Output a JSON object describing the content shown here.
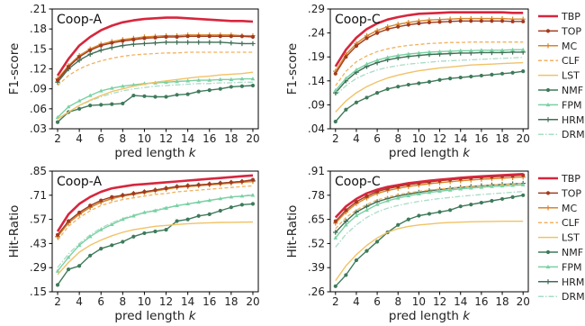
{
  "chart_data": [
    {
      "type": "line",
      "title": "Coop-A",
      "xlabel": "pred length k",
      "ylabel": "F1-score",
      "x": [
        2,
        3,
        4,
        5,
        6,
        7,
        8,
        9,
        10,
        11,
        12,
        13,
        14,
        15,
        16,
        17,
        18,
        19,
        20
      ],
      "xticks": [
        2,
        4,
        6,
        8,
        10,
        12,
        14,
        16,
        18,
        20
      ],
      "ylim": [
        0.03,
        0.21
      ],
      "yticks": [
        ".03",
        ".06",
        ".09",
        ".12",
        ".15",
        ".18",
        ".21"
      ],
      "series": [
        {
          "name": "TBP",
          "values": [
            0.11,
            0.135,
            0.155,
            0.168,
            0.178,
            0.185,
            0.19,
            0.193,
            0.195,
            0.196,
            0.197,
            0.197,
            0.196,
            0.195,
            0.194,
            0.193,
            0.192,
            0.192,
            0.191
          ]
        },
        {
          "name": "TOP",
          "values": [
            0.103,
            0.123,
            0.138,
            0.148,
            0.155,
            0.159,
            0.162,
            0.164,
            0.166,
            0.167,
            0.168,
            0.168,
            0.169,
            0.169,
            0.169,
            0.169,
            0.169,
            0.169,
            0.168
          ]
        },
        {
          "name": "MC",
          "values": [
            0.105,
            0.125,
            0.14,
            0.15,
            0.157,
            0.161,
            0.164,
            0.166,
            0.168,
            0.169,
            0.17,
            0.17,
            0.171,
            0.171,
            0.171,
            0.171,
            0.171,
            0.17,
            0.17
          ]
        },
        {
          "name": "CLF",
          "values": [
            0.095,
            0.11,
            0.12,
            0.127,
            0.132,
            0.136,
            0.139,
            0.141,
            0.142,
            0.143,
            0.144,
            0.144,
            0.145,
            0.145,
            0.145,
            0.145,
            0.145,
            0.145,
            0.145
          ]
        },
        {
          "name": "LST",
          "values": [
            0.045,
            0.055,
            0.065,
            0.073,
            0.08,
            0.086,
            0.09,
            0.094,
            0.097,
            0.1,
            0.102,
            0.104,
            0.106,
            0.108,
            0.109,
            0.111,
            0.112,
            0.113,
            0.115
          ]
        },
        {
          "name": "NMF",
          "values": [
            0.04,
            0.055,
            0.06,
            0.065,
            0.066,
            0.067,
            0.068,
            0.08,
            0.079,
            0.078,
            0.078,
            0.081,
            0.082,
            0.086,
            0.088,
            0.09,
            0.093,
            0.094,
            0.095
          ]
        },
        {
          "name": "FPM",
          "values": [
            0.047,
            0.063,
            0.072,
            0.08,
            0.087,
            0.091,
            0.094,
            0.096,
            0.098,
            0.099,
            0.1,
            0.101,
            0.102,
            0.103,
            0.103,
            0.104,
            0.104,
            0.105,
            0.105
          ]
        },
        {
          "name": "HRM",
          "values": [
            0.1,
            0.12,
            0.133,
            0.142,
            0.148,
            0.152,
            0.155,
            0.157,
            0.158,
            0.159,
            0.16,
            0.16,
            0.16,
            0.16,
            0.16,
            0.16,
            0.159,
            0.158,
            0.158
          ]
        },
        {
          "name": "DRM",
          "values": [
            0.045,
            0.055,
            0.065,
            0.072,
            0.078,
            0.083,
            0.087,
            0.09,
            0.092,
            0.094,
            0.095,
            0.096,
            0.097,
            0.098,
            0.098,
            0.099,
            0.099,
            0.1,
            0.1
          ]
        }
      ]
    },
    {
      "type": "line",
      "title": "Coop-C",
      "xlabel": "pred length k",
      "ylabel": "F1-score",
      "x": [
        2,
        3,
        4,
        5,
        6,
        7,
        8,
        9,
        10,
        11,
        12,
        13,
        14,
        15,
        16,
        17,
        18,
        19,
        20
      ],
      "xticks": [
        2,
        4,
        6,
        8,
        10,
        12,
        14,
        16,
        18,
        20
      ],
      "ylim": [
        0.04,
        0.29
      ],
      "yticks": [
        ".04",
        ".09",
        ".14",
        ".19",
        ".24",
        ".29"
      ],
      "series": [
        {
          "name": "TBP",
          "values": [
            0.17,
            0.205,
            0.23,
            0.248,
            0.26,
            0.268,
            0.273,
            0.277,
            0.28,
            0.281,
            0.282,
            0.283,
            0.283,
            0.283,
            0.283,
            0.283,
            0.283,
            0.282,
            0.282
          ]
        },
        {
          "name": "TOP",
          "values": [
            0.155,
            0.19,
            0.213,
            0.229,
            0.24,
            0.248,
            0.253,
            0.257,
            0.26,
            0.262,
            0.263,
            0.264,
            0.265,
            0.265,
            0.265,
            0.265,
            0.265,
            0.264,
            0.264
          ]
        },
        {
          "name": "MC",
          "values": [
            0.16,
            0.195,
            0.218,
            0.234,
            0.245,
            0.253,
            0.258,
            0.262,
            0.265,
            0.267,
            0.268,
            0.269,
            0.27,
            0.27,
            0.27,
            0.27,
            0.27,
            0.269,
            0.269
          ]
        },
        {
          "name": "CLF",
          "values": [
            0.13,
            0.16,
            0.18,
            0.192,
            0.201,
            0.207,
            0.211,
            0.214,
            0.216,
            0.218,
            0.219,
            0.22,
            0.22,
            0.221,
            0.221,
            0.221,
            0.221,
            0.221,
            0.221
          ]
        },
        {
          "name": "LST",
          "values": [
            0.075,
            0.098,
            0.115,
            0.128,
            0.138,
            0.146,
            0.152,
            0.157,
            0.161,
            0.164,
            0.167,
            0.169,
            0.171,
            0.173,
            0.174,
            0.175,
            0.176,
            0.177,
            0.178
          ]
        },
        {
          "name": "NMF",
          "values": [
            0.055,
            0.08,
            0.095,
            0.105,
            0.115,
            0.123,
            0.128,
            0.132,
            0.135,
            0.138,
            0.142,
            0.145,
            0.147,
            0.149,
            0.151,
            0.153,
            0.155,
            0.157,
            0.16
          ]
        },
        {
          "name": "FPM",
          "values": [
            0.12,
            0.145,
            0.163,
            0.175,
            0.183,
            0.189,
            0.193,
            0.196,
            0.198,
            0.2,
            0.201,
            0.202,
            0.203,
            0.203,
            0.204,
            0.204,
            0.204,
            0.205,
            0.205
          ]
        },
        {
          "name": "HRM",
          "values": [
            0.115,
            0.14,
            0.158,
            0.17,
            0.178,
            0.184,
            0.188,
            0.191,
            0.193,
            0.195,
            0.196,
            0.197,
            0.198,
            0.198,
            0.199,
            0.199,
            0.199,
            0.2,
            0.2
          ]
        },
        {
          "name": "DRM",
          "values": [
            0.11,
            0.13,
            0.145,
            0.155,
            0.163,
            0.168,
            0.172,
            0.175,
            0.177,
            0.179,
            0.181,
            0.182,
            0.183,
            0.184,
            0.185,
            0.186,
            0.187,
            0.188,
            0.189
          ]
        }
      ]
    },
    {
      "type": "line",
      "title": "Coop-A",
      "xlabel": "pred length k",
      "ylabel": "Hit-Ratio",
      "x": [
        2,
        3,
        4,
        5,
        6,
        7,
        8,
        9,
        10,
        11,
        12,
        13,
        14,
        15,
        16,
        17,
        18,
        19,
        20
      ],
      "xticks": [
        2,
        4,
        6,
        8,
        10,
        12,
        14,
        16,
        18,
        20
      ],
      "ylim": [
        0.15,
        0.85
      ],
      "yticks": [
        ".15",
        ".29",
        ".43",
        ".57",
        ".71",
        ".85"
      ],
      "series": [
        {
          "name": "TBP",
          "values": [
            0.5,
            0.6,
            0.66,
            0.7,
            0.73,
            0.75,
            0.76,
            0.77,
            0.775,
            0.78,
            0.785,
            0.79,
            0.795,
            0.8,
            0.805,
            0.81,
            0.815,
            0.82,
            0.825
          ]
        },
        {
          "name": "TOP",
          "values": [
            0.48,
            0.56,
            0.61,
            0.65,
            0.68,
            0.7,
            0.71,
            0.72,
            0.73,
            0.74,
            0.75,
            0.76,
            0.765,
            0.77,
            0.775,
            0.78,
            0.785,
            0.79,
            0.8
          ]
        },
        {
          "name": "MC",
          "values": [
            0.47,
            0.55,
            0.6,
            0.64,
            0.67,
            0.69,
            0.705,
            0.715,
            0.725,
            0.735,
            0.745,
            0.755,
            0.76,
            0.765,
            0.77,
            0.775,
            0.78,
            0.785,
            0.79
          ]
        },
        {
          "name": "CLF",
          "values": [
            0.45,
            0.53,
            0.58,
            0.62,
            0.65,
            0.67,
            0.685,
            0.695,
            0.705,
            0.715,
            0.72,
            0.73,
            0.735,
            0.74,
            0.745,
            0.75,
            0.755,
            0.76,
            0.765
          ]
        },
        {
          "name": "LST",
          "values": [
            0.25,
            0.32,
            0.38,
            0.42,
            0.45,
            0.475,
            0.495,
            0.51,
            0.52,
            0.53,
            0.535,
            0.54,
            0.545,
            0.548,
            0.55,
            0.552,
            0.553,
            0.554,
            0.555
          ]
        },
        {
          "name": "NMF",
          "values": [
            0.19,
            0.28,
            0.3,
            0.36,
            0.4,
            0.42,
            0.44,
            0.47,
            0.49,
            0.5,
            0.51,
            0.56,
            0.57,
            0.59,
            0.6,
            0.62,
            0.64,
            0.655,
            0.66
          ]
        },
        {
          "name": "FPM",
          "values": [
            0.27,
            0.35,
            0.42,
            0.47,
            0.51,
            0.54,
            0.57,
            0.59,
            0.61,
            0.62,
            0.635,
            0.65,
            0.66,
            0.67,
            0.68,
            0.69,
            0.7,
            0.705,
            0.71
          ]
        },
        {
          "name": "HRM",
          "values": [
            0.47,
            0.55,
            0.6,
            0.64,
            0.67,
            0.69,
            0.71,
            0.72,
            0.73,
            0.74,
            0.75,
            0.76,
            0.765,
            0.77,
            0.775,
            0.78,
            0.785,
            0.79,
            0.795
          ]
        },
        {
          "name": "DRM",
          "values": [
            0.29,
            0.37,
            0.43,
            0.48,
            0.52,
            0.55,
            0.575,
            0.595,
            0.61,
            0.625,
            0.64,
            0.65,
            0.66,
            0.67,
            0.68,
            0.69,
            0.7,
            0.705,
            0.715
          ]
        }
      ]
    },
    {
      "type": "line",
      "title": "Coop-C",
      "xlabel": "pred length k",
      "ylabel": "Hit-Ratio",
      "x": [
        2,
        3,
        4,
        5,
        6,
        7,
        8,
        9,
        10,
        11,
        12,
        13,
        14,
        15,
        16,
        17,
        18,
        19,
        20
      ],
      "xticks": [
        2,
        4,
        6,
        8,
        10,
        12,
        14,
        16,
        18,
        20
      ],
      "ylim": [
        0.26,
        0.91
      ],
      "yticks": [
        ".26",
        ".39",
        ".52",
        ".65",
        ".78",
        ".91"
      ],
      "series": [
        {
          "name": "TBP",
          "values": [
            0.66,
            0.72,
            0.76,
            0.79,
            0.81,
            0.825,
            0.835,
            0.845,
            0.852,
            0.858,
            0.864,
            0.869,
            0.874,
            0.878,
            0.882,
            0.885,
            0.888,
            0.891,
            0.894
          ]
        },
        {
          "name": "TOP",
          "values": [
            0.64,
            0.7,
            0.745,
            0.775,
            0.8,
            0.815,
            0.827,
            0.837,
            0.845,
            0.852,
            0.858,
            0.863,
            0.868,
            0.872,
            0.876,
            0.879,
            0.882,
            0.885,
            0.888
          ]
        },
        {
          "name": "MC",
          "values": [
            0.63,
            0.69,
            0.735,
            0.765,
            0.79,
            0.805,
            0.817,
            0.827,
            0.835,
            0.842,
            0.848,
            0.853,
            0.858,
            0.862,
            0.866,
            0.869,
            0.872,
            0.875,
            0.878
          ]
        },
        {
          "name": "CLF",
          "values": [
            0.6,
            0.66,
            0.7,
            0.73,
            0.755,
            0.77,
            0.783,
            0.793,
            0.801,
            0.808,
            0.814,
            0.819,
            0.824,
            0.828,
            0.832,
            0.835,
            0.838,
            0.841,
            0.844
          ]
        },
        {
          "name": "LST",
          "values": [
            0.32,
            0.4,
            0.46,
            0.51,
            0.55,
            0.58,
            0.6,
            0.612,
            0.62,
            0.625,
            0.63,
            0.633,
            0.635,
            0.637,
            0.638,
            0.639,
            0.64,
            0.64,
            0.64
          ]
        },
        {
          "name": "NMF",
          "values": [
            0.29,
            0.35,
            0.43,
            0.48,
            0.53,
            0.58,
            0.62,
            0.65,
            0.67,
            0.68,
            0.69,
            0.7,
            0.72,
            0.73,
            0.74,
            0.75,
            0.76,
            0.77,
            0.78
          ]
        },
        {
          "name": "FPM",
          "values": [
            0.55,
            0.62,
            0.67,
            0.7,
            0.73,
            0.75,
            0.765,
            0.777,
            0.787,
            0.795,
            0.802,
            0.808,
            0.814,
            0.819,
            0.823,
            0.827,
            0.83,
            0.833,
            0.836
          ]
        },
        {
          "name": "HRM",
          "values": [
            0.58,
            0.64,
            0.69,
            0.72,
            0.745,
            0.762,
            0.776,
            0.787,
            0.796,
            0.804,
            0.811,
            0.817,
            0.822,
            0.827,
            0.831,
            0.835,
            0.838,
            0.841,
            0.844
          ]
        },
        {
          "name": "DRM",
          "values": [
            0.5,
            0.57,
            0.62,
            0.66,
            0.69,
            0.71,
            0.725,
            0.737,
            0.747,
            0.755,
            0.762,
            0.768,
            0.774,
            0.779,
            0.784,
            0.788,
            0.792,
            0.796,
            0.8
          ]
        }
      ]
    }
  ],
  "legend": [
    {
      "name": "TBP",
      "color": "#d7263d",
      "marker": "none",
      "dash": "none"
    },
    {
      "name": "TOP",
      "color": "#a23b1e",
      "marker": "dot",
      "dash": "none"
    },
    {
      "name": "MC",
      "color": "#d8852a",
      "marker": "plus",
      "dash": "none"
    },
    {
      "name": "CLF",
      "color": "#f2b15f",
      "marker": "none",
      "dash": "dashed"
    },
    {
      "name": "LST",
      "color": "#f0c266",
      "marker": "none",
      "dash": "none"
    },
    {
      "name": "NMF",
      "color": "#3e7a5a",
      "marker": "dot",
      "dash": "none"
    },
    {
      "name": "FPM",
      "color": "#79d1a3",
      "marker": "triangle",
      "dash": "none"
    },
    {
      "name": "HRM",
      "color": "#3f6e55",
      "marker": "plus",
      "dash": "none"
    },
    {
      "name": "DRM",
      "color": "#a9dcc6",
      "marker": "none",
      "dash": "dashdot"
    }
  ]
}
